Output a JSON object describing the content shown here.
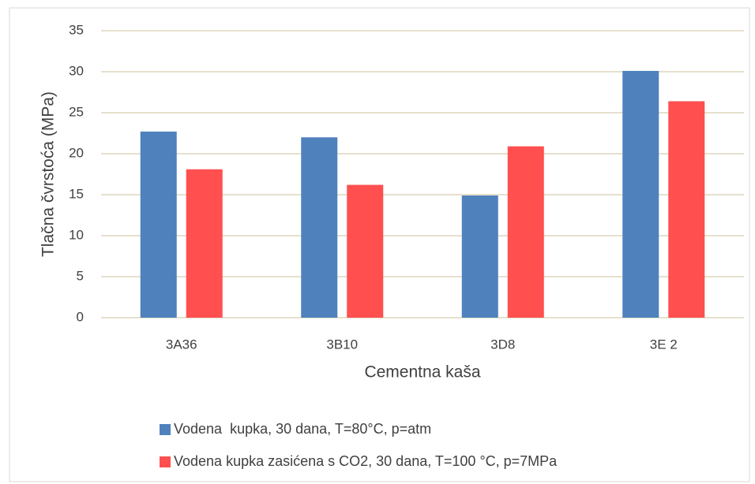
{
  "chart_data": {
    "type": "bar",
    "categories": [
      "3A36",
      "3B10",
      "3D8",
      "3E 2"
    ],
    "series": [
      {
        "name": "Vodena  kupka, 30 dana, T=80°C, p=atm",
        "color": "#4f81bd",
        "values": [
          22.7,
          22.0,
          14.9,
          30.1
        ]
      },
      {
        "name": "Vodena kupka zasićena s CO2, 30 dana, T=100 °C, p=7MPa",
        "color": "#ff4f4f",
        "values": [
          18.1,
          16.2,
          20.9,
          26.4
        ]
      }
    ],
    "x_label": "Cementna kaša",
    "y_label": "Tlačna čvrstoća (MPa)",
    "ylim": [
      0,
      35
    ],
    "yticks": [
      0,
      5,
      10,
      15,
      20,
      25,
      30,
      35
    ],
    "grid": true,
    "legend": "bottom"
  }
}
